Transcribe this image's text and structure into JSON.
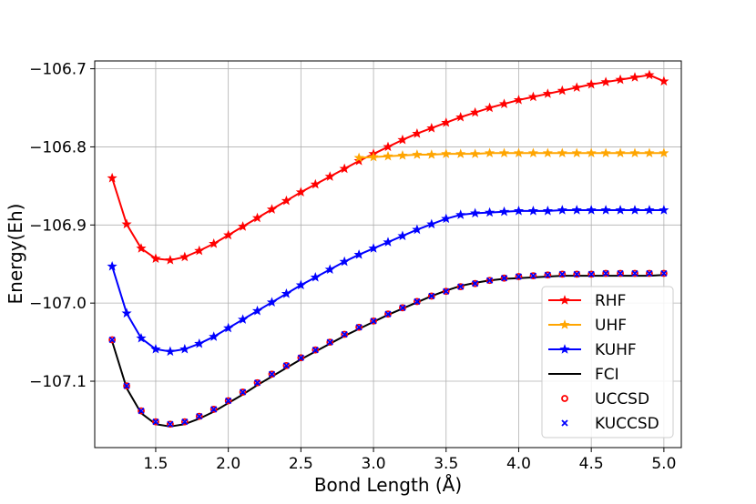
{
  "chart_data": {
    "type": "line",
    "title": "",
    "xlabel": "Bond Length (Å)",
    "ylabel": "Energy(Eh)",
    "xlim": [
      1.08,
      5.12
    ],
    "ylim": [
      -107.185,
      -106.69
    ],
    "xticks": [
      1.5,
      2.0,
      2.5,
      3.0,
      3.5,
      4.0,
      4.5,
      5.0
    ],
    "xtick_labels": [
      "1.5",
      "2.0",
      "2.5",
      "3.0",
      "3.5",
      "4.0",
      "4.5",
      "5.0"
    ],
    "yticks": [
      -106.7,
      -106.8,
      -106.9,
      -107.0,
      -107.1
    ],
    "ytick_labels": [
      "−106.7",
      "−106.8",
      "−106.9",
      "−107.0",
      "−107.1"
    ],
    "grid": true,
    "legend_position": "lower-right",
    "series": [
      {
        "name": "RHF",
        "color": "#ff0000",
        "marker": "star",
        "line": true,
        "x": [
          1.2,
          1.3,
          1.4,
          1.5,
          1.6,
          1.7,
          1.8,
          1.9,
          2.0,
          2.1,
          2.2,
          2.3,
          2.4,
          2.5,
          2.6,
          2.7,
          2.8,
          2.9,
          3.0,
          3.1,
          3.2,
          3.3,
          3.4,
          3.5,
          3.6,
          3.7,
          3.8,
          3.9,
          4.0,
          4.1,
          4.2,
          4.3,
          4.4,
          4.5,
          4.6,
          4.7,
          4.8,
          4.9,
          5.0
        ],
        "y": [
          -106.84,
          -106.899,
          -106.93,
          -106.943,
          -106.945,
          -106.941,
          -106.933,
          -106.924,
          -106.913,
          -106.902,
          -106.891,
          -106.88,
          -106.869,
          -106.858,
          -106.848,
          -106.838,
          -106.828,
          -106.818,
          -106.809,
          -106.8,
          -106.791,
          -106.783,
          -106.776,
          -106.769,
          -106.762,
          -106.756,
          -106.75,
          -106.745,
          -106.74,
          -106.736,
          -106.732,
          -106.728,
          -106.724,
          -106.72,
          -106.717,
          -106.714,
          -106.711,
          -106.708,
          -106.716
        ]
      },
      {
        "name": "UHF",
        "color": "#ffa500",
        "marker": "star",
        "line": true,
        "x": [
          2.9,
          3.0,
          3.1,
          3.2,
          3.3,
          3.4,
          3.5,
          3.6,
          3.7,
          3.8,
          3.9,
          4.0,
          4.1,
          4.2,
          4.3,
          4.4,
          4.5,
          4.6,
          4.7,
          4.8,
          4.9,
          5.0
        ],
        "y": [
          -106.814,
          -106.813,
          -106.812,
          -106.811,
          -106.81,
          -106.81,
          -106.809,
          -106.809,
          -106.809,
          -106.808,
          -106.808,
          -106.808,
          -106.808,
          -106.808,
          -106.808,
          -106.808,
          -106.808,
          -106.808,
          -106.808,
          -106.808,
          -106.808,
          -106.808
        ]
      },
      {
        "name": "KUHF",
        "color": "#0000ff",
        "marker": "star",
        "line": true,
        "x": [
          1.2,
          1.3,
          1.4,
          1.5,
          1.6,
          1.7,
          1.8,
          1.9,
          2.0,
          2.1,
          2.2,
          2.3,
          2.4,
          2.5,
          2.6,
          2.7,
          2.8,
          2.9,
          3.0,
          3.1,
          3.2,
          3.3,
          3.4,
          3.5,
          3.6,
          3.7,
          3.8,
          3.9,
          4.0,
          4.1,
          4.2,
          4.3,
          4.4,
          4.5,
          4.6,
          4.7,
          4.8,
          4.9,
          5.0
        ],
        "y": [
          -106.953,
          -107.013,
          -107.045,
          -107.059,
          -107.062,
          -107.059,
          -107.052,
          -107.043,
          -107.032,
          -107.021,
          -107.01,
          -106.999,
          -106.988,
          -106.977,
          -106.967,
          -106.957,
          -106.947,
          -106.938,
          -106.93,
          -106.922,
          -106.914,
          -106.906,
          -106.899,
          -106.892,
          -106.887,
          -106.885,
          -106.884,
          -106.883,
          -106.882,
          -106.882,
          -106.882,
          -106.881,
          -106.881,
          -106.881,
          -106.881,
          -106.881,
          -106.881,
          -106.881,
          -106.881
        ]
      },
      {
        "name": "FCI",
        "color": "#000000",
        "marker": "none",
        "line": true,
        "x": [
          1.2,
          1.3,
          1.4,
          1.5,
          1.6,
          1.7,
          1.8,
          1.9,
          2.0,
          2.1,
          2.2,
          2.3,
          2.4,
          2.5,
          2.6,
          2.7,
          2.8,
          2.9,
          3.0,
          3.1,
          3.2,
          3.3,
          3.4,
          3.5,
          3.6,
          3.7,
          3.8,
          3.9,
          4.0,
          4.1,
          4.2,
          4.3,
          4.4,
          4.5,
          4.6,
          4.7,
          4.8,
          4.9,
          5.0
        ],
        "y": [
          -107.049,
          -107.109,
          -107.141,
          -107.155,
          -107.158,
          -107.155,
          -107.148,
          -107.139,
          -107.128,
          -107.117,
          -107.105,
          -107.094,
          -107.083,
          -107.072,
          -107.062,
          -107.052,
          -107.042,
          -107.033,
          -107.024,
          -107.015,
          -107.007,
          -106.999,
          -106.991,
          -106.984,
          -106.978,
          -106.974,
          -106.971,
          -106.969,
          -106.968,
          -106.967,
          -106.966,
          -106.965,
          -106.965,
          -106.965,
          -106.965,
          -106.965,
          -106.965,
          -106.965,
          -106.964
        ]
      },
      {
        "name": "UCCSD",
        "color": "#ff0000",
        "marker": "circle",
        "line": false,
        "x": [
          1.2,
          1.3,
          1.4,
          1.5,
          1.6,
          1.7,
          1.8,
          1.9,
          2.0,
          2.1,
          2.2,
          2.3,
          2.4,
          2.5,
          2.6,
          2.7,
          2.8,
          2.9,
          3.0,
          3.1,
          3.2,
          3.3,
          3.4,
          3.5,
          3.6,
          3.7,
          3.8,
          3.9,
          4.0,
          4.1,
          4.2,
          4.3,
          4.4,
          4.5,
          4.6,
          4.7,
          4.8,
          4.9,
          5.0
        ],
        "y": [
          -107.047,
          -107.106,
          -107.138,
          -107.152,
          -107.155,
          -107.152,
          -107.145,
          -107.136,
          -107.125,
          -107.114,
          -107.102,
          -107.091,
          -107.08,
          -107.07,
          -107.06,
          -107.05,
          -107.04,
          -107.031,
          -107.023,
          -107.014,
          -107.006,
          -106.998,
          -106.991,
          -106.985,
          -106.979,
          -106.975,
          -106.971,
          -106.968,
          -106.966,
          -106.965,
          -106.964,
          -106.963,
          -106.963,
          -106.963,
          -106.962,
          -106.962,
          -106.962,
          -106.962,
          -106.962
        ]
      },
      {
        "name": "KUCCSD",
        "color": "#0000ff",
        "marker": "x",
        "line": false,
        "x": [
          1.2,
          1.3,
          1.4,
          1.5,
          1.6,
          1.7,
          1.8,
          1.9,
          2.0,
          2.1,
          2.2,
          2.3,
          2.4,
          2.5,
          2.6,
          2.7,
          2.8,
          2.9,
          3.0,
          3.1,
          3.2,
          3.3,
          3.4,
          3.5,
          3.6,
          3.7,
          3.8,
          3.9,
          4.0,
          4.1,
          4.2,
          4.3,
          4.4,
          4.5,
          4.6,
          4.7,
          4.8,
          4.9,
          5.0
        ],
        "y": [
          -107.047,
          -107.106,
          -107.138,
          -107.152,
          -107.155,
          -107.152,
          -107.145,
          -107.136,
          -107.125,
          -107.114,
          -107.102,
          -107.091,
          -107.08,
          -107.07,
          -107.06,
          -107.05,
          -107.04,
          -107.031,
          -107.023,
          -107.014,
          -107.006,
          -106.998,
          -106.991,
          -106.985,
          -106.979,
          -106.975,
          -106.971,
          -106.968,
          -106.966,
          -106.965,
          -106.964,
          -106.963,
          -106.963,
          -106.963,
          -106.962,
          -106.962,
          -106.962,
          -106.962,
          -106.962
        ]
      }
    ]
  }
}
